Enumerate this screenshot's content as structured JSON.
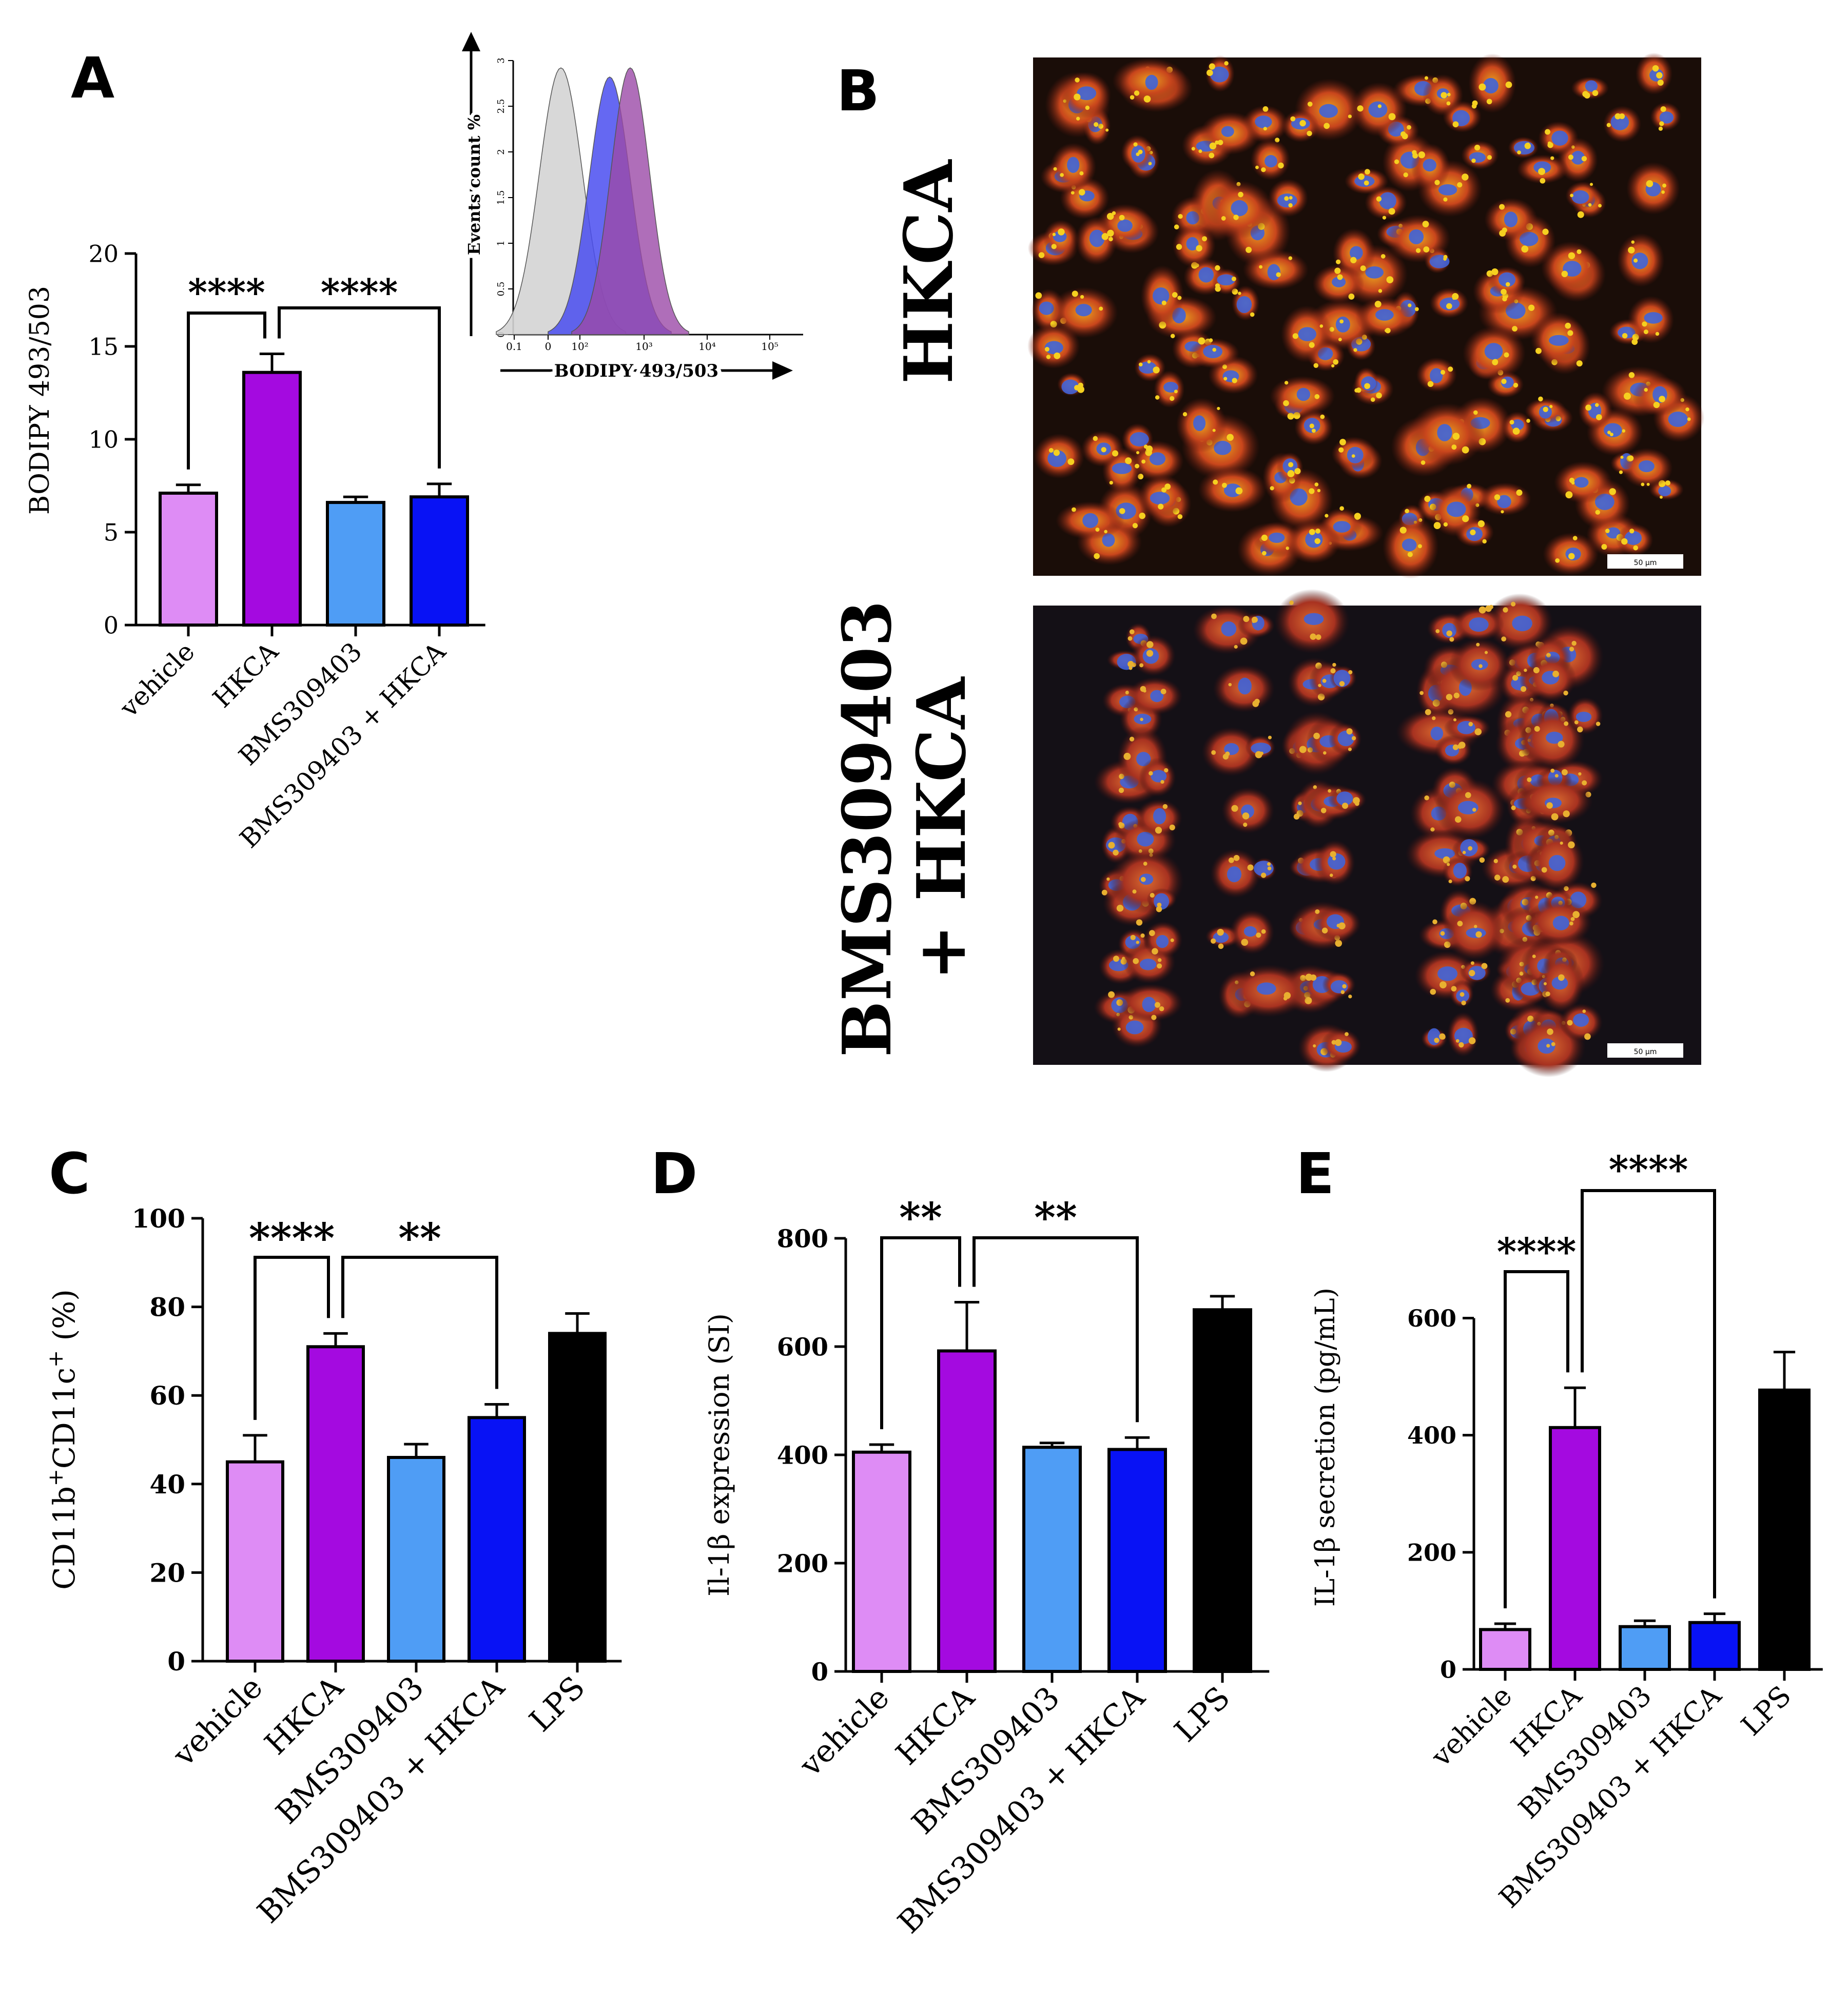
{
  "colors": {
    "vehicle": "#de8cf5",
    "HKCA": "#a40ae0",
    "BMS309403": "#4f9df5",
    "BMS309403 + HKCA": "#0812f5",
    "LPS": "#000000",
    "hist_gray": "#d4d4d4",
    "hist_blue": "#4a4df0",
    "hist_purple": "#9b4aa8"
  },
  "panel_letters": {
    "A": "A",
    "B": "B",
    "C": "C",
    "D": "D",
    "E": "E"
  },
  "panel_B": {
    "image_top_label": "HKCA",
    "image_bottom_label_line1": "BMS309403",
    "image_bottom_label_line2": "+ HKCA",
    "scale_bar_label": "50 µm"
  },
  "chart_data": [
    {
      "id": "A",
      "type": "bar",
      "ylabel": "BODIPY 493/503",
      "ylim": [
        0,
        20
      ],
      "yticks": [
        0,
        5,
        10,
        15,
        20
      ],
      "categories": [
        "vehicle",
        "HKCA",
        "BMS309403",
        "BMS309403 + HKCA"
      ],
      "values": [
        7.1,
        13.6,
        6.6,
        6.9
      ],
      "errors": [
        0.45,
        1.0,
        0.3,
        0.7
      ],
      "significance": [
        {
          "from": "vehicle",
          "to": "HKCA",
          "label": "****"
        },
        {
          "from": "HKCA",
          "to": "BMS309403 + HKCA",
          "label": "****"
        }
      ],
      "inset": {
        "type": "histogram",
        "xlabel": "BODIPY 493/503",
        "ylabel": "Events count %",
        "xscale": "log",
        "xticks": [
          "0.1",
          "0",
          "10²",
          "10³",
          "10⁴",
          "10⁵"
        ],
        "yticks": [
          "0",
          "0.5",
          "1",
          "1.5",
          "2",
          "2.5",
          "3"
        ],
        "series": [
          {
            "color_key": "hist_gray",
            "peak": 2.92
          },
          {
            "color_key": "hist_blue",
            "peak": 2.82
          },
          {
            "color_key": "hist_purple",
            "peak": 2.92
          }
        ]
      }
    },
    {
      "id": "C",
      "type": "bar",
      "ylabel_main": "CD11b",
      "ylabel_sup1": "+",
      "ylabel_mid": "CD11c",
      "ylabel_sup2": "+",
      "ylabel_tail": " (%)",
      "ylim": [
        0,
        100
      ],
      "yticks": [
        0,
        20,
        40,
        60,
        80,
        100
      ],
      "categories": [
        "vehicle",
        "HKCA",
        "BMS309403",
        "BMS309403 + HKCA",
        "LPS"
      ],
      "values": [
        45,
        71,
        46,
        55,
        74
      ],
      "errors": [
        6,
        3,
        3,
        3,
        4.5
      ],
      "significance": [
        {
          "from": "vehicle",
          "to": "HKCA",
          "label": "****"
        },
        {
          "from": "HKCA",
          "to": "BMS309403 + HKCA",
          "label": "**"
        }
      ]
    },
    {
      "id": "D",
      "type": "bar",
      "ylabel": "Il-1β  expression (SI)",
      "ylim": [
        0,
        800
      ],
      "yticks": [
        0,
        200,
        400,
        600,
        800
      ],
      "categories": [
        "vehicle",
        "HKCA",
        "BMS309403",
        "BMS309403 + HKCA",
        "LPS"
      ],
      "values": [
        405,
        592,
        414,
        410,
        668
      ],
      "errors": [
        14,
        90,
        8,
        22,
        25
      ],
      "significance": [
        {
          "from": "vehicle",
          "to": "HKCA",
          "label": "**"
        },
        {
          "from": "HKCA",
          "to": "BMS309403 + HKCA",
          "label": "**"
        }
      ]
    },
    {
      "id": "E",
      "type": "bar",
      "ylabel": "IL-1β secretion (pg/mL)",
      "ylim": [
        0,
        660
      ],
      "yticks": [
        0,
        200,
        400,
        600
      ],
      "categories": [
        "vehicle",
        "HKCA",
        "BMS309403",
        "BMS309403 + HKCA",
        "LPS"
      ],
      "values": [
        68,
        413,
        73,
        80,
        477
      ],
      "errors": [
        10,
        68,
        10,
        15,
        65
      ],
      "significance": [
        {
          "from": "vehicle",
          "to": "HKCA",
          "label": "****"
        },
        {
          "from": "HKCA",
          "to": "BMS309403 + HKCA",
          "label": "****"
        }
      ]
    }
  ]
}
